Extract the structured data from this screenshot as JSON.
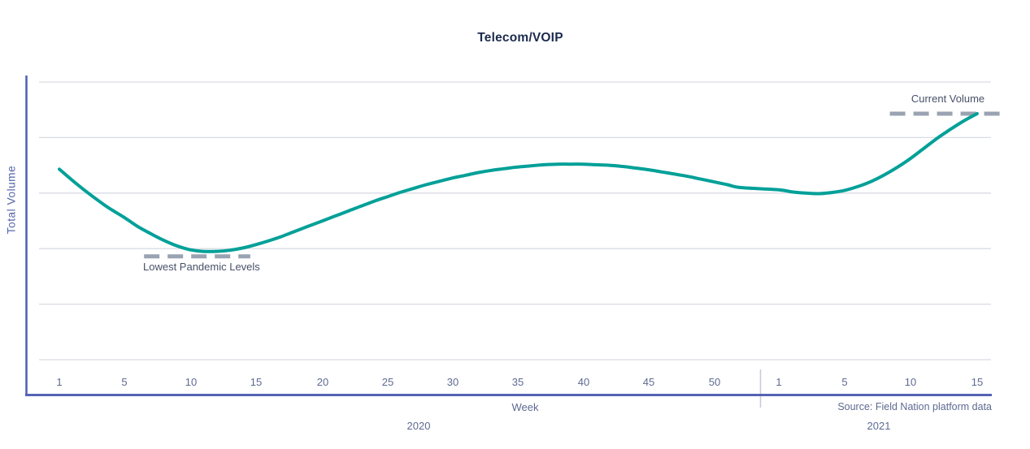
{
  "chart": {
    "title": "Telecom/VOIP",
    "y_axis_label": "Total Volume",
    "x_axis_label": "Week",
    "years": [
      "2020",
      "2021"
    ],
    "source": "Source: Field Nation platform data"
  },
  "colors": {
    "line": "#00A098",
    "axis": "#5562b6",
    "gridline": "#d9dce4",
    "tick_text": "#5e6a92",
    "annotation_dash": "#9aa3b2",
    "annotation_text": "#475169",
    "year_separator": "#c7cbd4",
    "title_text": "#1c2b4d"
  },
  "chart_data": {
    "type": "line",
    "title": "Telecom/VOIP",
    "xlabel": "Week",
    "ylabel": "Total Volume",
    "source": "Source: Field Nation platform data",
    "legend": "none",
    "grid": "horizontal",
    "ylim": [
      0,
      5
    ],
    "y_tick_labels": "none (unlabeled relative volume index; horizontal gridlines at integer steps 0-5)",
    "x_ticks": {
      "2020": [
        "1",
        "5",
        "10",
        "15",
        "20",
        "25",
        "30",
        "35",
        "40",
        "45",
        "50"
      ],
      "2021": [
        "1",
        "5",
        "10",
        "15"
      ]
    },
    "annotations": [
      {
        "label": "Lowest Pandemic Levels",
        "type": "dashed-line",
        "year": "2020",
        "week_start": 6.5,
        "week_end": 14.6,
        "value": 1.86,
        "label_position": "below-left"
      },
      {
        "label": "Current Volume",
        "type": "dashed-line",
        "year": "2021",
        "week_start": 9.4,
        "week_end": 17.9,
        "value": 4.43,
        "label_position": "above-center"
      }
    ],
    "series": [
      {
        "name": "Telecom/VOIP Total Volume",
        "segments": [
          {
            "year": "2020",
            "points": [
              [
                1,
                3.43
              ],
              [
                2,
                3.18
              ],
              [
                3,
                2.95
              ],
              [
                4,
                2.74
              ],
              [
                5,
                2.56
              ],
              [
                6,
                2.4
              ],
              [
                7,
                2.27
              ],
              [
                8,
                2.15
              ],
              [
                9,
                2.05
              ],
              [
                10,
                1.98
              ],
              [
                11,
                1.95
              ],
              [
                12,
                1.95
              ],
              [
                13,
                1.97
              ],
              [
                14,
                2.01
              ],
              [
                15,
                2.07
              ],
              [
                16,
                2.14
              ],
              [
                17,
                2.22
              ],
              [
                18,
                2.31
              ],
              [
                19,
                2.4
              ],
              [
                20,
                2.49
              ],
              [
                21,
                2.58
              ],
              [
                22,
                2.67
              ],
              [
                23,
                2.76
              ],
              [
                24,
                2.85
              ],
              [
                25,
                2.93
              ],
              [
                26,
                3.01
              ],
              [
                27,
                3.08
              ],
              [
                28,
                3.15
              ],
              [
                29,
                3.21
              ],
              [
                30,
                3.27
              ],
              [
                31,
                3.32
              ],
              [
                32,
                3.37
              ],
              [
                33,
                3.41
              ],
              [
                34,
                3.44
              ],
              [
                35,
                3.47
              ],
              [
                36,
                3.49
              ],
              [
                37,
                3.51
              ],
              [
                38,
                3.52
              ],
              [
                39,
                3.52
              ],
              [
                40,
                3.52
              ],
              [
                41,
                3.51
              ],
              [
                42,
                3.5
              ],
              [
                43,
                3.48
              ],
              [
                44,
                3.45
              ],
              [
                45,
                3.42
              ],
              [
                46,
                3.38
              ],
              [
                47,
                3.34
              ],
              [
                48,
                3.3
              ],
              [
                49,
                3.25
              ],
              [
                50,
                3.2
              ],
              [
                51,
                3.15
              ],
              [
                52,
                3.1
              ]
            ]
          },
          {
            "year": "2021",
            "points": [
              [
                1,
                3.06
              ],
              [
                2,
                3.02
              ],
              [
                3,
                3.0
              ],
              [
                4,
                2.99
              ],
              [
                5,
                3.01
              ],
              [
                6,
                3.05
              ],
              [
                7,
                3.12
              ],
              [
                8,
                3.21
              ],
              [
                9,
                3.33
              ],
              [
                10,
                3.47
              ],
              [
                11,
                3.63
              ],
              [
                12,
                3.81
              ],
              [
                13,
                3.99
              ],
              [
                14,
                4.15
              ],
              [
                15,
                4.3
              ],
              [
                16,
                4.43
              ]
            ]
          }
        ]
      }
    ]
  }
}
